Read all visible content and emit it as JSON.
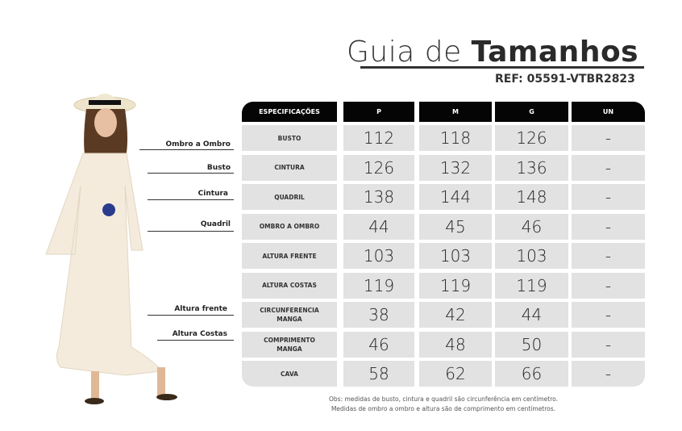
{
  "title": {
    "light": "Guia de",
    "bold": "Tamanhos"
  },
  "ref": "REF: 05591-VTBR2823",
  "table": {
    "headers": [
      "ESPECIFICAÇÕES",
      "P",
      "M",
      "G",
      "UN"
    ],
    "rows": [
      {
        "spec": "BUSTO",
        "values": [
          "112",
          "118",
          "126",
          "-"
        ]
      },
      {
        "spec": "CINTURA",
        "values": [
          "126",
          "132",
          "136",
          "-"
        ]
      },
      {
        "spec": "QUADRIL",
        "values": [
          "138",
          "144",
          "148",
          "-"
        ]
      },
      {
        "spec": "OMBRO A OMBRO",
        "values": [
          "44",
          "45",
          "46",
          "-"
        ]
      },
      {
        "spec": "ALTURA FRENTE",
        "values": [
          "103",
          "103",
          "103",
          "-"
        ]
      },
      {
        "spec": "ALTURA COSTAS",
        "values": [
          "119",
          "119",
          "119",
          "-"
        ]
      },
      {
        "spec": "CIRCUNFERENCIA MANGA",
        "values": [
          "38",
          "42",
          "44",
          "-"
        ]
      },
      {
        "spec": "COMPRIMENTO MANGA",
        "values": [
          "46",
          "48",
          "50",
          "-"
        ]
      },
      {
        "spec": "CAVA",
        "values": [
          "58",
          "62",
          "66",
          "-"
        ]
      }
    ]
  },
  "figure_labels": [
    "Ombro a Ombro",
    "Busto",
    "Cintura",
    "Quadril",
    "Altura frente",
    "Altura Costas"
  ],
  "notes": [
    "Obs: medidas de busto, cintura e quadril são circunferência em centímetro.",
    "Medidas de ombro a ombro e altura são de comprimento em centímetros."
  ]
}
